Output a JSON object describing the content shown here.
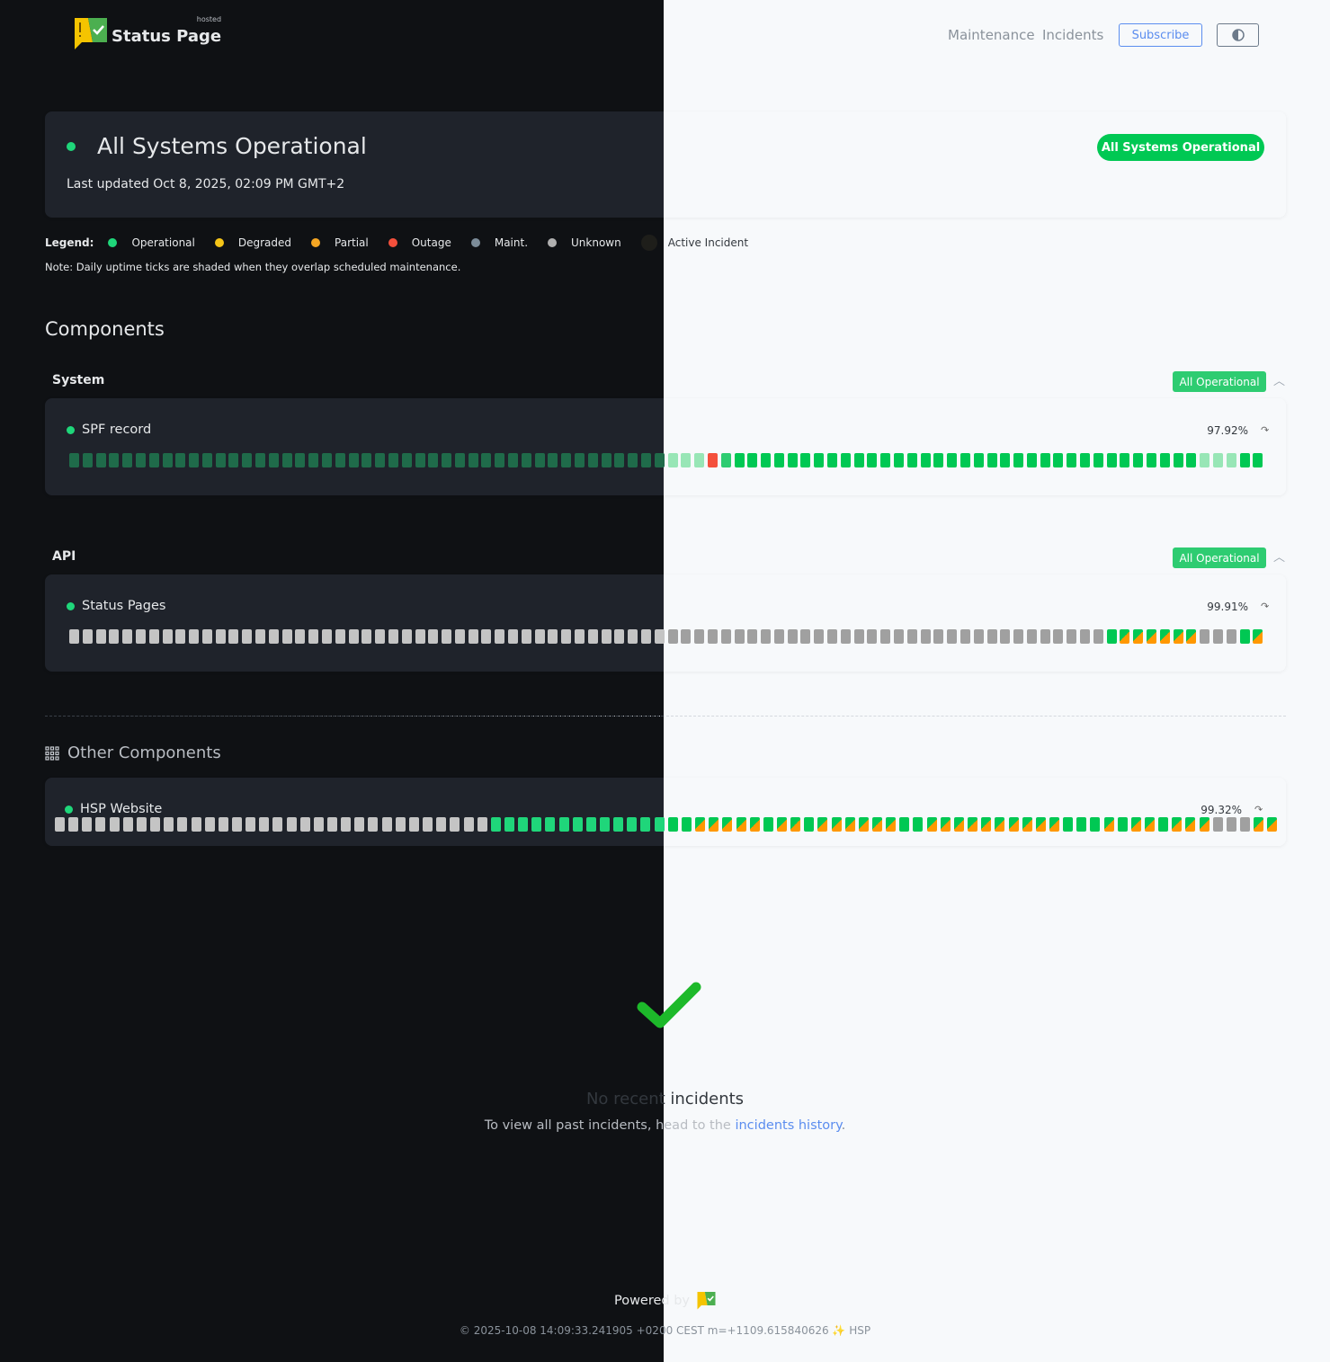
{
  "header": {
    "logo_text": "Status Page",
    "logo_hosted": "hosted",
    "nav": [
      "Maintenance",
      "Incidents"
    ],
    "subscribe_label": "Subscribe",
    "theme_toggle_icon": "half-circle-icon"
  },
  "summary": {
    "title": "All Systems Operational",
    "last_updated": "Last updated Oct 8, 2025, 02:09 PM GMT+2",
    "badge": "All Systems Operational"
  },
  "legend": {
    "label": "Legend:",
    "items": [
      {
        "label": "Operational",
        "color": "#1fd67a"
      },
      {
        "label": "Degraded",
        "color": "#f5c518"
      },
      {
        "label": "Partial",
        "color": "#f5a623"
      },
      {
        "label": "Outage",
        "color": "#f4503c"
      },
      {
        "label": "Maint.",
        "color": "#7c8c99"
      },
      {
        "label": "Unknown",
        "color": "#b0b0b0"
      },
      {
        "label": "Active Incident",
        "color": "#1e1e1a"
      }
    ],
    "note": "Note: Daily uptime ticks are shaded when they overlap scheduled maintenance."
  },
  "components_title": "Components",
  "colors": {
    "dark": {
      "op": "#1fd67a",
      "shaded": "#1f6b4a",
      "mid": "#1fd67a",
      "outage": "#f4503c",
      "unknown": "#c4c4c4",
      "partial": "#ff9800",
      "opsplit": "#00c853"
    },
    "light": {
      "op": "#00c853",
      "shaded": "#98e6b6",
      "mid": "#2ecc71",
      "outage": "#f4503c",
      "unknown": "#a0a0a0",
      "partial": "#ff9800",
      "opsplit": "#00c853"
    }
  },
  "groups": [
    {
      "label": "System",
      "badge": "All Operational",
      "components": [
        {
          "name": "SPF record",
          "uptime": "97.92%",
          "ticks": "SSSSSSSSSSSSSSSSSSSSSSSSSSSSSSSSSSSSSSSSSSSSSSSSXMGGGGGGGGGGGGGGGGGGGGGGGGGGGGGGGGGGGSSSGG"
        }
      ]
    },
    {
      "label": "API",
      "badge": "All Operational",
      "components": [
        {
          "name": "Status Pages",
          "uptime": "99.91%",
          "ticks": "UUUUUUUUUUUUUUUUUUUUUUUUUUUUUUUUUUUUUUUUUUUUUUUUUUUUUUUUUUUUUUUUUUUUUUUUUUUUUUGPPPPPPUUUGP"
        }
      ]
    }
  ],
  "other": {
    "title": "Other Components",
    "components": [
      {
        "name": "HSP Website",
        "uptime": "99.32%",
        "ticks": "UUUUUUUUUUUUUUUUUUUUUUUUUUUUUUUUGGGGGGGGGGGGGGGPPPPPGPPGPPPPPPGGPPPPPPPPPPGGGPGPPGPPPUUUPP"
      }
    ]
  },
  "incidents": {
    "title": "No recent incidents",
    "sub_prefix": "To view all past incidents, head to the ",
    "link": "incidents history",
    "sub_suffix": "."
  },
  "footer": {
    "powered_by": "Powered by",
    "build": "© 2025-10-08 14:09:33.241905 +0200 CEST m=+1109.615840626 ✨ HSP"
  }
}
